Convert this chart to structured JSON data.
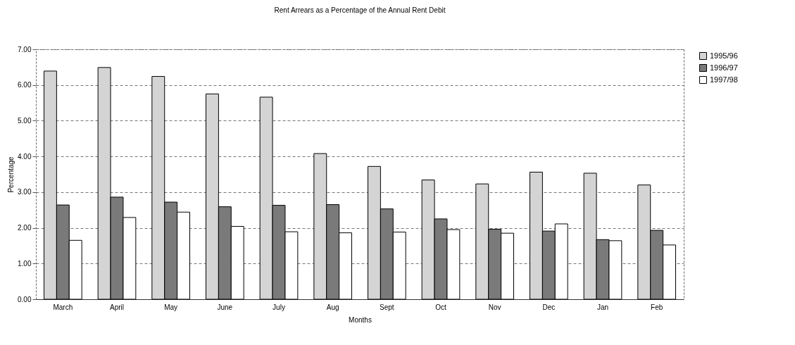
{
  "chart_data": {
    "type": "bar",
    "title": "Rent Arrears as a Percentage of the Annual Rent Debit",
    "xlabel": "Months",
    "ylabel": "Percentage",
    "categories": [
      "March",
      "April",
      "May",
      "June",
      "July",
      "Aug",
      "Sept",
      "Oct",
      "Nov",
      "Dec",
      "Jan",
      "Feb"
    ],
    "series": [
      {
        "name": "1995/96",
        "color": "#d4d4d4",
        "values": [
          6.39,
          6.49,
          6.24,
          5.75,
          5.66,
          4.08,
          3.72,
          3.34,
          3.23,
          3.56,
          3.53,
          3.2
        ]
      },
      {
        "name": "1996/97",
        "color": "#7a7a7a",
        "values": [
          2.64,
          2.86,
          2.72,
          2.59,
          2.63,
          2.65,
          2.53,
          2.25,
          1.96,
          1.91,
          1.67,
          1.93
        ]
      },
      {
        "name": "1997/98",
        "color": "#ffffff",
        "values": [
          1.65,
          2.29,
          2.44,
          2.04,
          1.89,
          1.86,
          1.88,
          1.95,
          1.85,
          2.11,
          1.64,
          1.52
        ]
      }
    ],
    "ylim": [
      0,
      7
    ],
    "yticks": [
      {
        "value": 0,
        "label": "0.00"
      },
      {
        "value": 1,
        "label": "1.00"
      },
      {
        "value": 2,
        "label": "2.00"
      },
      {
        "value": 3,
        "label": "3.00"
      },
      {
        "value": 4,
        "label": "4.00"
      },
      {
        "value": 5,
        "label": "5.00"
      },
      {
        "value": 6,
        "label": "6.00"
      },
      {
        "value": 7,
        "label": "7.00"
      }
    ],
    "grid": "y",
    "legend": "right"
  }
}
